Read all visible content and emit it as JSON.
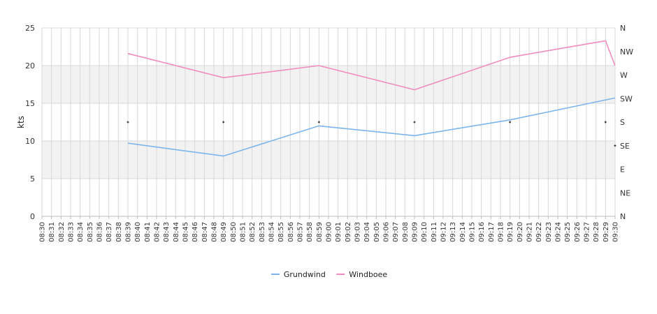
{
  "chart_data": {
    "type": "line",
    "ylabel": "kts",
    "ylim": [
      0,
      25
    ],
    "yticks": [
      "0",
      "5",
      "10",
      "15",
      "20",
      "25"
    ],
    "y2_ticks": [
      "N",
      "NE",
      "E",
      "SE",
      "S",
      "SW",
      "W",
      "NW",
      "N"
    ],
    "x_ticks": [
      "08:30",
      "08:31",
      "08:32",
      "08:33",
      "08:34",
      "08:35",
      "08:36",
      "08:37",
      "08:38",
      "08:39",
      "08:40",
      "08:41",
      "08:42",
      "08:43",
      "08:44",
      "08:45",
      "08:46",
      "08:47",
      "08:48",
      "08:49",
      "08:50",
      "08:51",
      "08:52",
      "08:53",
      "08:54",
      "08:55",
      "08:56",
      "08:57",
      "08:58",
      "08:59",
      "09:00",
      "09:01",
      "09:02",
      "09:03",
      "09:04",
      "09:05",
      "09:06",
      "09:07",
      "09:08",
      "09:09",
      "09:10",
      "09:11",
      "09:12",
      "09:13",
      "09:14",
      "09:15",
      "09:16",
      "09:17",
      "09:18",
      "09:19",
      "09:20",
      "09:21",
      "09:22",
      "09:23",
      "09:24",
      "09:25",
      "09:26",
      "09:27",
      "09:28",
      "09:29",
      "09:30"
    ],
    "grid": true,
    "legend_position": "bottom",
    "series": [
      {
        "name": "Grundwind",
        "color": "#7cb5ec",
        "points": [
          {
            "x": "08:39",
            "y": 9.7
          },
          {
            "x": "08:49",
            "y": 8.0
          },
          {
            "x": "08:59",
            "y": 12.0
          },
          {
            "x": "09:09",
            "y": 10.7
          },
          {
            "x": "09:19",
            "y": 12.8
          },
          {
            "x": "09:30",
            "y": 15.7
          }
        ]
      },
      {
        "name": "Windboee",
        "color": "#f08cbf",
        "points": [
          {
            "x": "08:39",
            "y": 21.6
          },
          {
            "x": "08:49",
            "y": 18.4
          },
          {
            "x": "08:59",
            "y": 20.0
          },
          {
            "x": "09:09",
            "y": 16.8
          },
          {
            "x": "09:19",
            "y": 21.1
          },
          {
            "x": "09:29",
            "y": 23.3
          },
          {
            "x": "09:30",
            "y": 20.0
          }
        ]
      }
    ],
    "direction_markers": [
      {
        "x": "08:39",
        "direction": "S"
      },
      {
        "x": "08:49",
        "direction": "S"
      },
      {
        "x": "08:59",
        "direction": "S"
      },
      {
        "x": "09:09",
        "direction": "S"
      },
      {
        "x": "09:19",
        "direction": "S"
      },
      {
        "x": "09:29",
        "direction": "S"
      },
      {
        "x": "09:30",
        "direction": "SE"
      }
    ]
  }
}
